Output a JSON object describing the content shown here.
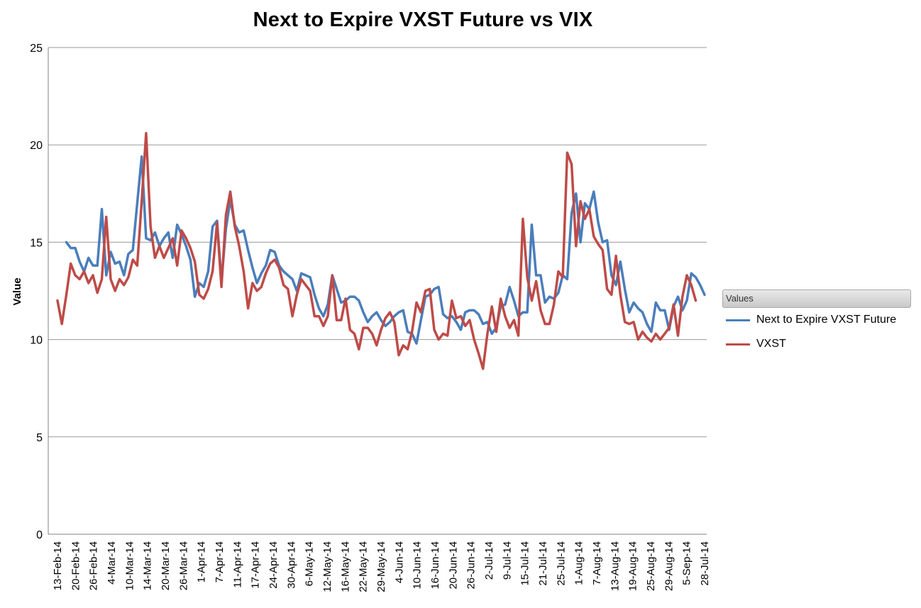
{
  "chart_data": {
    "type": "line",
    "title": "Next to Expire VXST Future vs VIX",
    "xlabel": "",
    "ylabel": "Value",
    "ylim": [
      0,
      25
    ],
    "yticks": [
      0,
      5,
      10,
      15,
      20,
      25
    ],
    "grid": true,
    "legend_title": "Values",
    "legend_position": "right",
    "x_tick_labels": [
      "13-Feb-14",
      "20-Feb-14",
      "26-Feb-14",
      "4-Mar-14",
      "10-Mar-14",
      "14-Mar-14",
      "20-Mar-14",
      "26-Mar-14",
      "1-Apr-14",
      "7-Apr-14",
      "11-Apr-14",
      "17-Apr-14",
      "24-Apr-14",
      "30-Apr-14",
      "6-May-14",
      "12-May-14",
      "16-May-14",
      "22-May-14",
      "29-May-14",
      "4-Jun-14",
      "10-Jun-14",
      "16-Jun-14",
      "20-Jun-14",
      "26-Jun-14",
      "2-Jul-14",
      "9-Jul-14",
      "15-Jul-14",
      "21-Jul-14",
      "25-Jul-14",
      "1-Aug-14",
      "7-Aug-14",
      "13-Aug-14",
      "19-Aug-14",
      "25-Aug-14",
      "29-Aug-14",
      "5-Sep-14",
      "28-Jul-14"
    ],
    "series": [
      {
        "name": "Next to Expire VXST Future",
        "color": "#4a7ebb",
        "start_index": 2,
        "values": [
          15.0,
          14.7,
          14.7,
          14.0,
          13.5,
          14.2,
          13.8,
          13.8,
          16.7,
          13.3,
          14.5,
          13.9,
          14.0,
          13.3,
          14.4,
          14.6,
          17.0,
          19.4,
          15.2,
          15.1,
          15.5,
          14.8,
          15.2,
          15.5,
          14.2,
          15.9,
          15.4,
          14.8,
          14.1,
          12.2,
          12.9,
          12.7,
          13.5,
          15.8,
          16.1,
          13.0,
          15.7,
          17.2,
          15.9,
          15.5,
          15.6,
          14.6,
          13.7,
          12.9,
          13.4,
          13.8,
          14.6,
          14.5,
          13.8,
          13.5,
          13.3,
          13.1,
          12.5,
          13.4,
          13.3,
          13.2,
          12.3,
          11.6,
          11.2,
          11.8,
          13.3,
          12.6,
          11.9,
          12.0,
          12.2,
          12.2,
          12.0,
          11.4,
          10.9,
          11.2,
          11.4,
          11.0,
          10.7,
          10.9,
          11.2,
          11.4,
          11.5,
          10.4,
          10.3,
          9.8,
          11.0,
          12.2,
          12.3,
          12.6,
          12.7,
          11.3,
          11.1,
          11.2,
          10.9,
          10.5,
          11.4,
          11.5,
          11.5,
          11.3,
          10.8,
          10.9,
          10.3,
          10.6,
          11.7,
          11.8,
          12.7,
          12.0,
          11.2,
          11.4,
          11.4,
          15.9,
          13.3,
          13.3,
          11.9,
          12.2,
          12.1,
          12.4,
          13.3,
          13.1,
          16.5,
          17.5,
          15.0,
          17.0,
          16.7,
          17.6,
          16.0,
          15.0,
          15.1,
          13.3,
          12.8,
          14.0,
          12.6,
          11.4,
          11.9,
          11.6,
          11.4,
          10.8,
          10.4,
          11.9,
          11.5,
          11.5,
          10.5,
          11.7,
          12.2,
          11.5,
          12.0,
          13.4,
          13.2,
          12.8,
          12.3
        ]
      },
      {
        "name": "VXST",
        "color": "#be4b48",
        "start_index": 0,
        "values": [
          12.0,
          10.8,
          12.3,
          13.9,
          13.3,
          13.1,
          13.5,
          12.9,
          13.3,
          12.4,
          13.1,
          16.3,
          13.1,
          12.5,
          13.1,
          12.8,
          13.2,
          14.1,
          13.8,
          17.1,
          20.6,
          15.8,
          14.2,
          14.8,
          14.2,
          14.7,
          15.2,
          13.8,
          15.6,
          15.2,
          14.7,
          14.0,
          12.3,
          12.1,
          12.6,
          13.5,
          16.0,
          12.7,
          16.4,
          17.6,
          15.8,
          14.8,
          13.5,
          11.6,
          12.9,
          12.5,
          12.7,
          13.4,
          13.9,
          14.1,
          13.7,
          12.8,
          12.6,
          11.2,
          12.3,
          13.1,
          12.8,
          12.5,
          11.2,
          11.2,
          10.7,
          11.2,
          13.3,
          11.0,
          11.0,
          12.1,
          10.5,
          10.3,
          9.5,
          10.6,
          10.6,
          10.3,
          9.7,
          10.5,
          11.1,
          11.4,
          10.9,
          9.2,
          9.7,
          9.5,
          10.4,
          11.9,
          11.4,
          12.5,
          12.6,
          10.5,
          10.0,
          10.3,
          10.2,
          12.0,
          11.1,
          11.2,
          10.7,
          11.0,
          10.0,
          9.3,
          8.5,
          10.3,
          11.7,
          10.4,
          12.1,
          11.2,
          10.6,
          11.0,
          10.2,
          16.2,
          13.2,
          12.0,
          13.0,
          11.5,
          10.8,
          10.8,
          11.8,
          13.5,
          13.2,
          19.6,
          19.0,
          14.8,
          17.1,
          16.2,
          16.7,
          15.3,
          14.9,
          14.6,
          12.6,
          12.3,
          14.3,
          12.3,
          10.9,
          10.8,
          10.9,
          10.0,
          10.4,
          10.1,
          9.9,
          10.3,
          10.0,
          10.3,
          10.6,
          11.8,
          10.2,
          12.2,
          13.3,
          12.8,
          12.0
        ]
      }
    ]
  }
}
